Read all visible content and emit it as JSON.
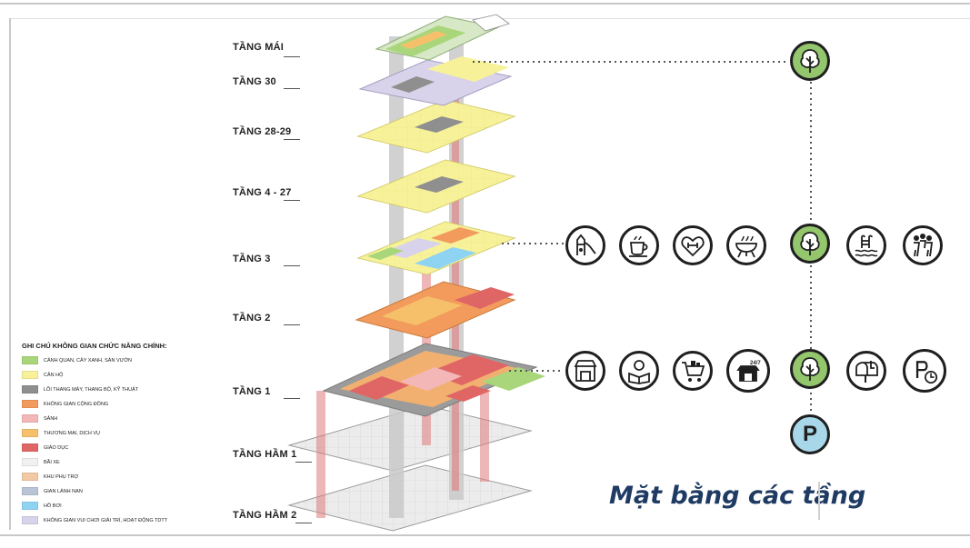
{
  "floors": [
    {
      "label": "TẦNG MÁI"
    },
    {
      "label": "TẦNG 30"
    },
    {
      "label": "TẦNG 28-29"
    },
    {
      "label": "TẦNG 4 - 27"
    },
    {
      "label": "TẦNG 3"
    },
    {
      "label": "TẦNG 2"
    },
    {
      "label": "TẦNG 1"
    },
    {
      "label": "TẦNG HẦM 1"
    },
    {
      "label": "TẦNG HẦM 2"
    }
  ],
  "legend": {
    "title": "GHI CHÚ KHÔNG GIAN CHỨC NĂNG CHÍNH:",
    "items": [
      {
        "label": "CẢNH QUAN, CÂY XANH, SÂN VƯỜN",
        "color": "#a9d67a"
      },
      {
        "label": "CĂN HỘ",
        "color": "#f7f29a"
      },
      {
        "label": "LÕI THANG MÁY, THANG BỘ, KỸ THUẬT",
        "color": "#8f8f8f"
      },
      {
        "label": "KHÔNG GIAN CỘNG ĐỒNG",
        "color": "#f29b5c"
      },
      {
        "label": "SẢNH",
        "color": "#f3b7b7"
      },
      {
        "label": "THƯƠNG MẠI, DỊCH VỤ",
        "color": "#f6c06b"
      },
      {
        "label": "GIÁO DỤC",
        "color": "#e06666"
      },
      {
        "label": "BÃI XE",
        "color": "#f1f1f1"
      },
      {
        "label": "KHU PHỤ TRỢ",
        "color": "#f2c9a4"
      },
      {
        "label": "GIAN LÁNH NẠN",
        "color": "#b9c4d6"
      },
      {
        "label": "HỒ BƠI",
        "color": "#8fd3f2"
      },
      {
        "label": "KHÔNG GIAN VUI CHƠI GIẢI TRÍ, HOẠT ĐỘNG TDTT",
        "color": "#d8d2ea"
      }
    ]
  },
  "caption": "Mặt bằng các tầng",
  "icons": {
    "roof_tree": "tree-icon",
    "row3": [
      "playground-icon",
      "coffee-icon",
      "fitness-icon",
      "bbq-icon",
      "tree-icon",
      "pool-icon",
      "community-icon"
    ],
    "row1": [
      "shop-icon",
      "reading-icon",
      "cart-icon",
      "store-24-7-icon",
      "tree-icon",
      "mailbox-icon",
      "parking-clock-icon"
    ],
    "parking_label": "P",
    "store_24_label": "24/7"
  },
  "colors": {
    "green": "#93c66d",
    "blue": "#a8d7ea",
    "caption": "#1f3b63"
  }
}
